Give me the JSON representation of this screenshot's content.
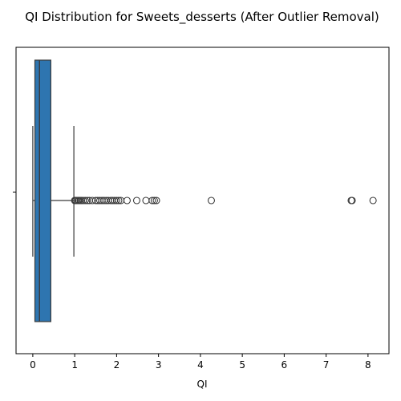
{
  "chart_data": {
    "type": "box",
    "title": "QI Distribution for Sweets_desserts (After Outlier Removal)",
    "xlabel": "QI",
    "ylabel": "",
    "orientation": "horizontal",
    "xlim": [
      -0.4,
      8.5
    ],
    "x_ticks": [
      0,
      1,
      2,
      3,
      4,
      5,
      6,
      7,
      8
    ],
    "x_tick_labels": [
      "0",
      "1",
      "2",
      "3",
      "4",
      "5",
      "6",
      "7",
      "8"
    ],
    "grid": false,
    "legend": "none",
    "box_color": "#2e75b0",
    "line_color": "#3a3a3a",
    "box": {
      "whisker_low": 0.0,
      "q1": 0.05,
      "median": 0.16,
      "q3": 0.43,
      "whisker_high": 0.98
    },
    "outliers": [
      1.0,
      1.02,
      1.05,
      1.08,
      1.1,
      1.13,
      1.16,
      1.2,
      1.25,
      1.3,
      1.35,
      1.42,
      1.5,
      1.55,
      1.6,
      1.65,
      1.7,
      1.75,
      1.8,
      1.86,
      1.9,
      1.95,
      2.0,
      2.05,
      2.1,
      2.25,
      2.48,
      2.7,
      2.85,
      2.9,
      2.95,
      4.26,
      7.6,
      7.62,
      8.12
    ]
  }
}
